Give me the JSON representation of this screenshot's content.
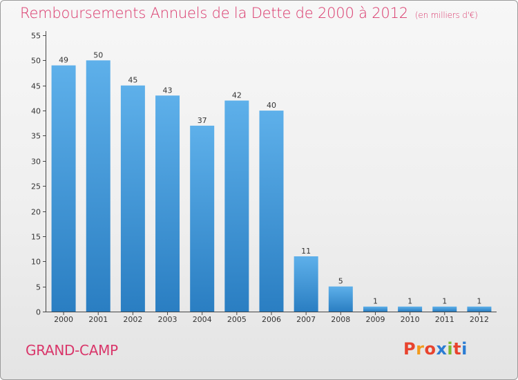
{
  "header": {
    "title": "Remboursements Annuels de la Dette de 2000 à 2012",
    "unit": "(en milliers d'€)"
  },
  "footer": {
    "commune": "GRAND-CAMP",
    "logo": [
      "P",
      "r",
      "o",
      "x",
      "i",
      "t",
      "i"
    ]
  },
  "colors": {
    "bar_top": "#5eb0ea",
    "bar_bottom": "#2a7ec2",
    "title": "#d9366a",
    "logo": [
      "#e8432e",
      "#f29a1d",
      "#e8432e",
      "#2b7cd3",
      "#7dba2f",
      "#e8432e",
      "#2b7cd3"
    ]
  },
  "chart_data": {
    "type": "bar",
    "categories": [
      "2000",
      "2001",
      "2002",
      "2003",
      "2004",
      "2005",
      "2006",
      "2007",
      "2008",
      "2009",
      "2010",
      "2011",
      "2012"
    ],
    "values": [
      49,
      50,
      45,
      43,
      37,
      42,
      40,
      11,
      5,
      1,
      1,
      1,
      1
    ],
    "title": "Remboursements Annuels de la Dette de 2000 à 2012",
    "ylim": [
      0,
      55
    ],
    "yticks": [
      0,
      5,
      10,
      15,
      20,
      25,
      30,
      35,
      40,
      45,
      50,
      55
    ],
    "grid": false,
    "legend": "none"
  }
}
